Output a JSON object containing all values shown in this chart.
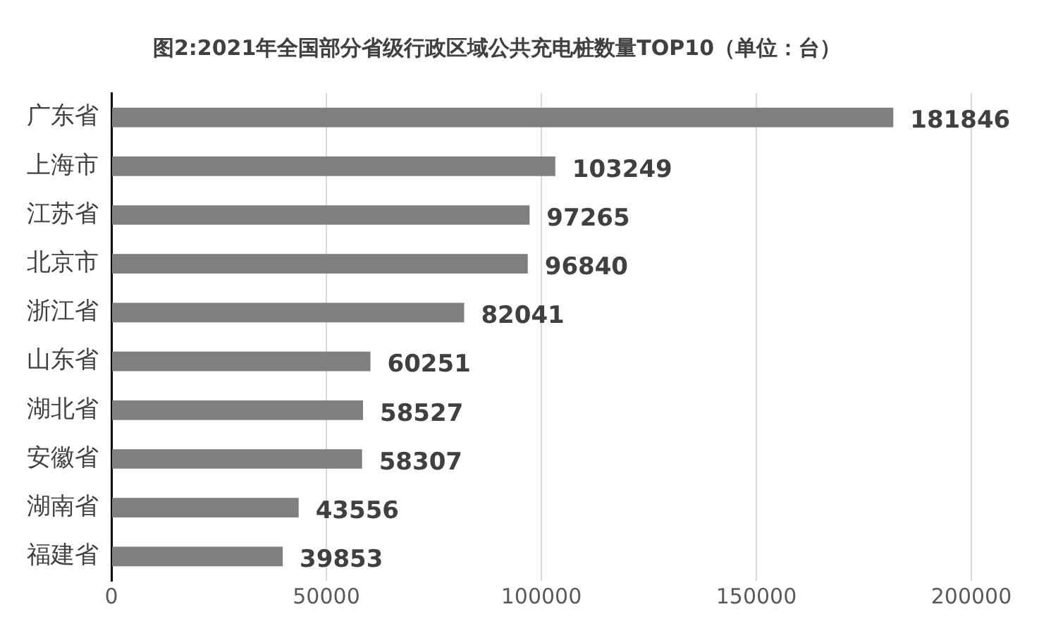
{
  "chart_data": {
    "type": "bar",
    "orientation": "horizontal",
    "title": "图2:2021年全国部分省级行政区域公共充电桩数量TOP10（单位：台）",
    "categories": [
      "广东省",
      "上海市",
      "江苏省",
      "北京市",
      "浙江省",
      "山东省",
      "湖北省",
      "安徽省",
      "湖南省",
      "福建省"
    ],
    "values": [
      181846,
      103249,
      97265,
      96840,
      82041,
      60251,
      58527,
      58307,
      43556,
      39853
    ],
    "color": "#7f7f7f",
    "xlim": [
      0,
      200000
    ],
    "xticks": [
      0,
      50000,
      100000,
      150000,
      200000
    ],
    "grid": "x",
    "data_labels": true,
    "legend": false
  }
}
